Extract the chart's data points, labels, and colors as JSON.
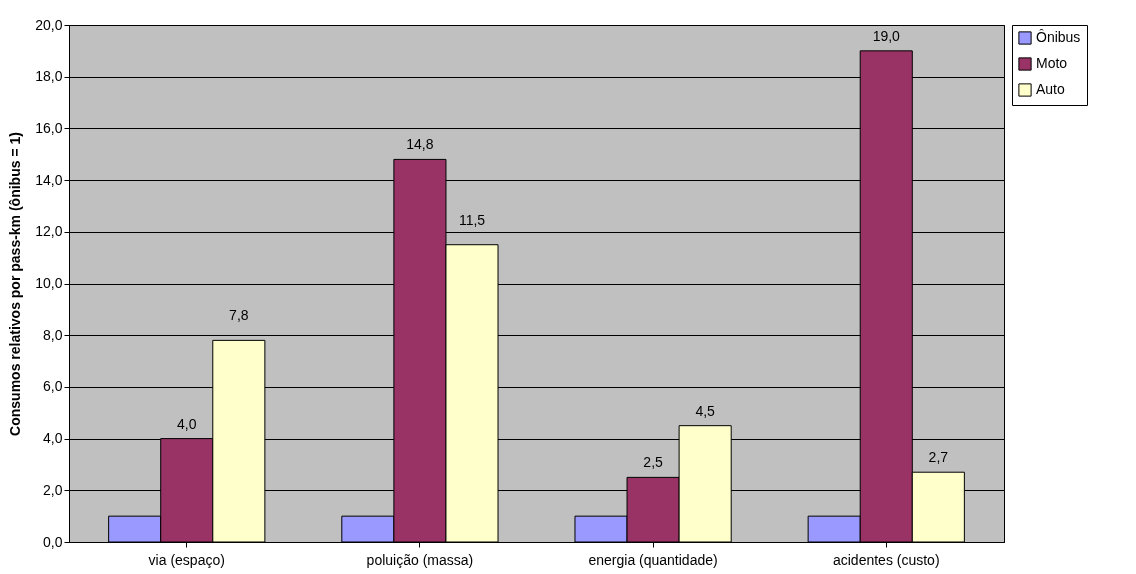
{
  "chart_data": {
    "type": "bar",
    "ylabel": "Consumos relativos por pass-km (ônibus = 1)",
    "categories": [
      "via (espaço)",
      "poluição (massa)",
      "energia (quantidade)",
      "acidentes (custo)"
    ],
    "series": [
      {
        "name": "Ônibus",
        "color": "#9999ff",
        "values": [
          1,
          1,
          1,
          1
        ],
        "value_labels": [
          null,
          null,
          null,
          null
        ]
      },
      {
        "name": "Moto",
        "color": "#993366",
        "values": [
          4.0,
          14.8,
          2.5,
          19.0
        ],
        "value_labels": [
          "4,0",
          "14,8",
          "2,5",
          "19,0"
        ]
      },
      {
        "name": "Auto",
        "color": "#ffffcc",
        "values": [
          7.8,
          11.5,
          4.5,
          2.7
        ],
        "value_labels": [
          "7,8",
          "11,5",
          "4,5",
          "2,7"
        ]
      }
    ],
    "ylim": [
      0,
      20
    ],
    "yticks": [
      {
        "value": 0,
        "label": "0,0"
      },
      {
        "value": 2,
        "label": "2,0"
      },
      {
        "value": 4,
        "label": "4,0"
      },
      {
        "value": 6,
        "label": "6,0"
      },
      {
        "value": 8,
        "label": "8,0"
      },
      {
        "value": 10,
        "label": "10,0"
      },
      {
        "value": 12,
        "label": "12,0"
      },
      {
        "value": 14,
        "label": "14,0"
      },
      {
        "value": 16,
        "label": "16,0"
      },
      {
        "value": 18,
        "label": "18,0"
      },
      {
        "value": 20,
        "label": "20,0"
      }
    ],
    "grid": "y",
    "legend": "right"
  }
}
